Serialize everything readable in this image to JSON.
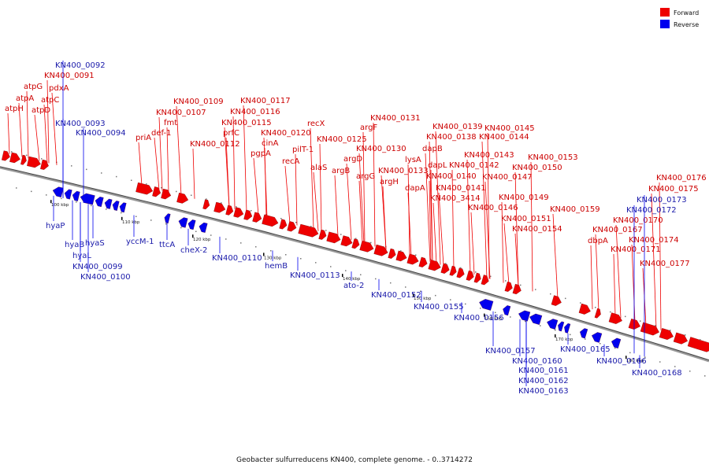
{
  "legend": {
    "forward": "Forward",
    "reverse": "Reverse"
  },
  "colors": {
    "forward": "#ee0000",
    "reverse": "#0000ee",
    "backbone": "#888888"
  },
  "caption": "Geobacter sulfurreducens KN400, complete genome. - 0..3714272",
  "ticks": [
    "100 kbp",
    "110 kbp",
    "120 kbp",
    "130 kbp",
    "140 kbp",
    "150 kbp",
    "160 kbp",
    "170 kbp",
    "180 kbp"
  ],
  "forward_labels": [
    "atpH",
    "atpA",
    "atpD",
    "atpG",
    "atpC",
    "pdxA",
    "KN400_0091",
    "priA",
    "def-1",
    "fmt",
    "KN400_0107",
    "KN400_0109",
    "KN400_0112",
    "prfC",
    "KN400_0115",
    "KN400_0116",
    "KN400_0117",
    "pgpA",
    "cinA",
    "KN400_0120",
    "recA",
    "pilT-1",
    "recX",
    "alaS",
    "KN400_0125",
    "argB",
    "argD",
    "argF",
    "argG",
    "KN400_0130",
    "KN400_0131",
    "argH",
    "KN400_0133",
    "lysA",
    "dapA",
    "dapB",
    "dapL",
    "KN400_0138",
    "KN400_0139",
    "KN400_0140",
    "KN400_3414",
    "KN400_0141",
    "KN400_0142",
    "KN400_0143",
    "KN400_0144",
    "KN400_0145",
    "KN400_0146",
    "KN400_0147",
    "KN400_0149",
    "KN400_0150",
    "KN400_0151",
    "KN400_0153",
    "KN400_0154",
    "KN400_0159",
    "dbpA",
    "KN400_0167",
    "KN400_0170",
    "KN400_0171",
    "KN400_0174",
    "KN400_0175",
    "KN400_0176",
    "KN400_0177"
  ],
  "reverse_labels": [
    "KN400_0092",
    "KN400_0093",
    "KN400_0094",
    "hyaP",
    "hyaB",
    "hyaS",
    "hyaL",
    "KN400_0099",
    "KN400_0100",
    "yccM-1",
    "ttcA",
    "cheX-2",
    "KN400_0110",
    "hemB",
    "KN400_0113",
    "ato-2",
    "KN400_0152",
    "KN400_0155",
    "KN400_0156",
    "KN400_0157",
    "KN400_0160",
    "KN400_0161",
    "KN400_0162",
    "KN400_0163",
    "KN400_0165",
    "KN400_0166",
    "KN400_0168",
    "KN400_0172",
    "KN400_0173"
  ]
}
